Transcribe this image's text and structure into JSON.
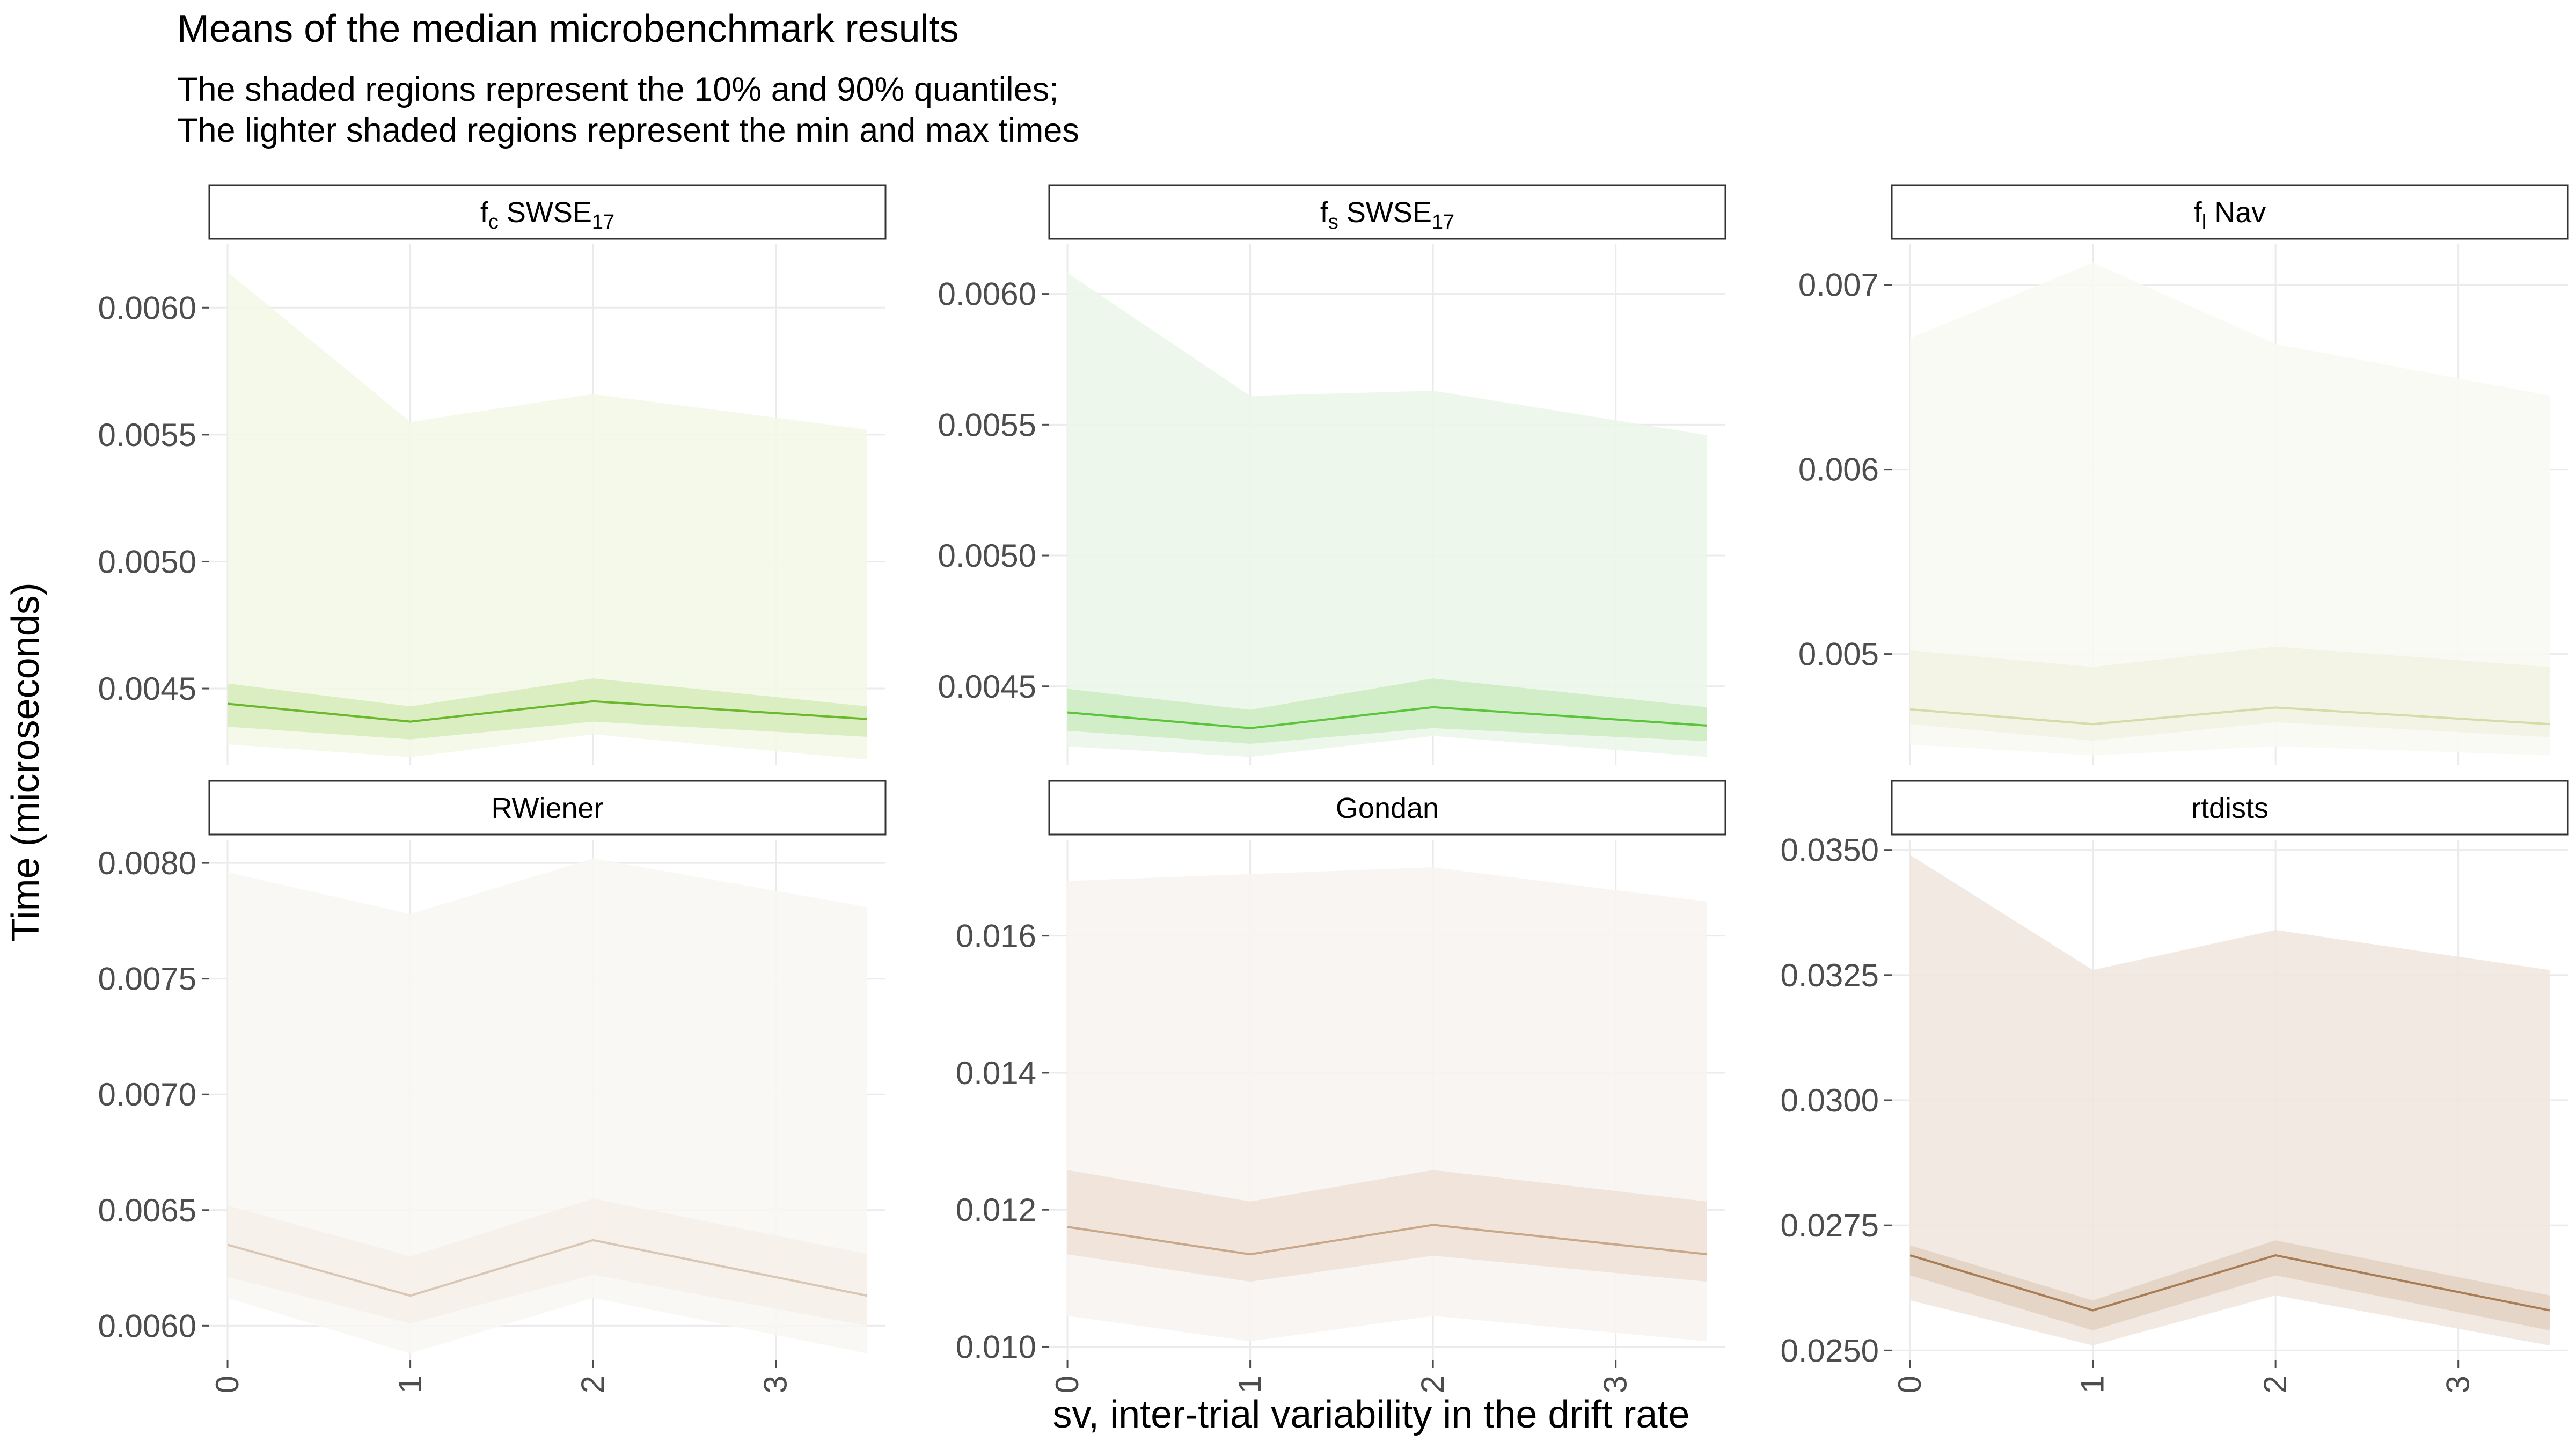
{
  "title": "Means of the median microbenchmark results",
  "subtitle_line1": "The shaded regions represent the 10% and 90% quantiles;",
  "subtitle_line2": "The lighter shaded regions represent the min and max times",
  "xlabel": "sv, inter-trial variability in the drift rate",
  "ylabel": "Time (microseconds)",
  "chart_data": {
    "type": "line",
    "xlabel": "sv, inter-trial variability in the drift rate",
    "ylabel": "Time (microseconds)",
    "x": [
      0,
      1,
      2,
      3.5
    ],
    "x_ticks": [
      "0",
      "1",
      "2",
      "3"
    ],
    "x_tick_values": [
      0,
      1,
      2,
      3
    ],
    "xlim": [
      -0.1,
      3.6
    ],
    "grid": true,
    "facets": [
      {
        "id": "fc",
        "label_main": "f",
        "label_sub": "c",
        "label_rest": " SWSE",
        "label_sub2": "17",
        "color": "#6cb82c",
        "inner_color": "#d7ecbc",
        "outer_color": "#f3f8e8",
        "ylim": [
          0.0042,
          0.00625
        ],
        "yticks": [
          0.0045,
          0.005,
          0.0055,
          0.006
        ],
        "ytick_labels": [
          "0.0045",
          "0.0050",
          "0.0055",
          "0.0060"
        ],
        "mean": [
          0.00444,
          0.00437,
          0.00445,
          0.00438
        ],
        "q10": [
          0.00435,
          0.0043,
          0.00437,
          0.00431
        ],
        "q90": [
          0.00452,
          0.00443,
          0.00454,
          0.00443
        ],
        "min": [
          0.00428,
          0.00423,
          0.00432,
          0.00422
        ],
        "max": [
          0.00614,
          0.00555,
          0.00566,
          0.00552
        ]
      },
      {
        "id": "fs",
        "label_main": "f",
        "label_sub": "s",
        "label_rest": " SWSE",
        "label_sub2": "17",
        "color": "#5cc43a",
        "inner_color": "#cdecc4",
        "outer_color": "#ecf6ea",
        "ylim": [
          0.0042,
          0.00619
        ],
        "yticks": [
          0.0045,
          0.005,
          0.0055,
          0.006
        ],
        "ytick_labels": [
          "0.0045",
          "0.0050",
          "0.0055",
          "0.0060"
        ],
        "mean": [
          0.0044,
          0.00434,
          0.00442,
          0.00435
        ],
        "q10": [
          0.00433,
          0.00428,
          0.00434,
          0.00429
        ],
        "q90": [
          0.00449,
          0.00441,
          0.00453,
          0.00442
        ],
        "min": [
          0.00427,
          0.00423,
          0.00431,
          0.00423
        ],
        "max": [
          0.00608,
          0.00561,
          0.00563,
          0.00546
        ]
      },
      {
        "id": "fl",
        "label_main": "f",
        "label_sub": "l",
        "label_rest": " Nav",
        "label_sub2": "",
        "color": "#d6dba8",
        "inner_color": "#f2f3e4",
        "outer_color": "#fafaf4",
        "ylim": [
          0.0044,
          0.00722
        ],
        "yticks": [
          0.005,
          0.006,
          0.007
        ],
        "ytick_labels": [
          "0.005",
          "0.006",
          "0.007"
        ],
        "mean": [
          0.0047,
          0.00462,
          0.00471,
          0.00462
        ],
        "q10": [
          0.00462,
          0.00453,
          0.00463,
          0.00455
        ],
        "q90": [
          0.00502,
          0.00493,
          0.00504,
          0.00493
        ],
        "min": [
          0.00451,
          0.00445,
          0.0045,
          0.00445
        ],
        "max": [
          0.00671,
          0.00712,
          0.00668,
          0.0064
        ]
      },
      {
        "id": "rwiener",
        "label_main": "RWiener",
        "label_sub": "",
        "label_rest": "",
        "label_sub2": "",
        "color": "#d9c7b3",
        "inner_color": "#f6efea",
        "outer_color": "#faf7f4",
        "ylim": [
          0.00585,
          0.0081
        ],
        "yticks": [
          0.006,
          0.0065,
          0.007,
          0.0075,
          0.008
        ],
        "ytick_labels": [
          "0.0060",
          "0.0065",
          "0.0070",
          "0.0075",
          "0.0080"
        ],
        "mean": [
          0.00635,
          0.00613,
          0.00637,
          0.00613
        ],
        "q10": [
          0.00621,
          0.00601,
          0.00622,
          0.006
        ],
        "q90": [
          0.00652,
          0.0063,
          0.00655,
          0.00631
        ],
        "min": [
          0.00612,
          0.00588,
          0.00612,
          0.00588
        ],
        "max": [
          0.00796,
          0.00778,
          0.00802,
          0.00781
        ]
      },
      {
        "id": "gondan",
        "label_main": "Gondan",
        "label_sub": "",
        "label_rest": "",
        "label_sub2": "",
        "color": "#c9a88a",
        "inner_color": "#eee2d8",
        "outer_color": "#f8f4f1",
        "ylim": [
          0.0098,
          0.0174
        ],
        "yticks": [
          0.01,
          0.012,
          0.014,
          0.016
        ],
        "ytick_labels": [
          "0.010",
          "0.012",
          "0.014",
          "0.016"
        ],
        "mean": [
          0.01175,
          0.01135,
          0.01178,
          0.01135
        ],
        "q10": [
          0.01135,
          0.01095,
          0.01133,
          0.01095
        ],
        "q90": [
          0.01258,
          0.01212,
          0.01258,
          0.01212
        ],
        "min": [
          0.01045,
          0.01008,
          0.01045,
          0.01008
        ],
        "max": [
          0.0168,
          0.0169,
          0.017,
          0.0165
        ]
      },
      {
        "id": "rtdists",
        "label_main": "rtdists",
        "label_sub": "",
        "label_rest": "",
        "label_sub2": "",
        "color": "#a87d55",
        "inner_color": "#e3d3c3",
        "outer_color": "#f0e7df",
        "ylim": [
          0.0248,
          0.0352
        ],
        "yticks": [
          0.025,
          0.0275,
          0.03,
          0.0325,
          0.035
        ],
        "ytick_labels": [
          "0.0250",
          "0.0275",
          "0.0300",
          "0.0325",
          "0.0350"
        ],
        "mean": [
          0.0269,
          0.0258,
          0.0269,
          0.0258
        ],
        "q10": [
          0.0265,
          0.0254,
          0.0265,
          0.0254
        ],
        "q90": [
          0.0271,
          0.026,
          0.0272,
          0.0261
        ],
        "min": [
          0.026,
          0.0251,
          0.0261,
          0.0251
        ],
        "max": [
          0.0349,
          0.0326,
          0.0334,
          0.0326
        ]
      }
    ]
  }
}
